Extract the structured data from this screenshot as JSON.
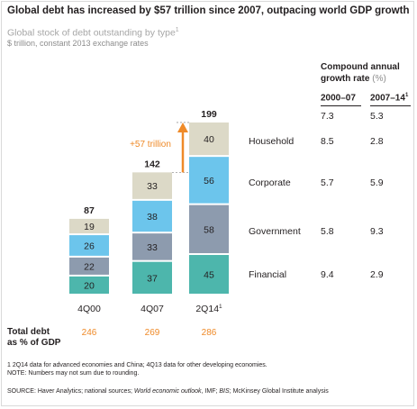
{
  "title": "Global debt has increased by $57 trillion since 2007, outpacing world GDP growth",
  "subtitle": "Global stock of debt outstanding by type",
  "subtitle_sup": "1",
  "subtitle2": "$ trillion, constant 2013 exchange rates",
  "chart_data": {
    "type": "bar",
    "stacked": true,
    "categories": [
      "4Q00",
      "4Q07",
      "2Q14"
    ],
    "category_sup": [
      "",
      "",
      "1"
    ],
    "series": [
      {
        "name": "Financial",
        "values": [
          20,
          37,
          45
        ],
        "color": "#4db6ac"
      },
      {
        "name": "Government",
        "values": [
          22,
          33,
          58
        ],
        "color": "#8d9bae"
      },
      {
        "name": "Corporate",
        "values": [
          26,
          38,
          56
        ],
        "color": "#6cc5ec"
      },
      {
        "name": "Household",
        "values": [
          19,
          33,
          40
        ],
        "color": "#dcd9c7"
      }
    ],
    "totals": [
      87,
      142,
      199
    ],
    "annotation": "+57 trillion",
    "total_debt_pct_gdp": [
      246,
      269,
      286
    ],
    "total_debt_label": [
      "Total debt",
      "as % of GDP"
    ],
    "cagr": {
      "title": [
        "Compound annual",
        "growth rate"
      ],
      "unit": "(%)",
      "columns": [
        "2000–07",
        "2007–14"
      ],
      "column_sup": [
        "",
        "1"
      ],
      "total": [
        "7.3",
        "5.3"
      ],
      "rows": {
        "Household": [
          "8.5",
          "2.8"
        ],
        "Corporate": [
          "5.7",
          "5.9"
        ],
        "Government": [
          "5.8",
          "9.3"
        ],
        "Financial": [
          "9.4",
          "2.9"
        ]
      }
    }
  },
  "notes": [
    "1  2Q14 data for advanced economies and China; 4Q13 data for other developing economies.",
    "NOTE: Numbers may not sum due to rounding."
  ],
  "source": {
    "prefix": "SOURCE:  Haver Analytics; national sources; ",
    "italic1": "World economic outlook",
    "mid": ", IMF; ",
    "italic2": "BIS",
    "suffix": "; McKinsey Global Institute analysis"
  },
  "colors": {
    "accent_orange": "#ef8a28",
    "text": "#231f20",
    "grey_text": "#a6a6a6"
  }
}
